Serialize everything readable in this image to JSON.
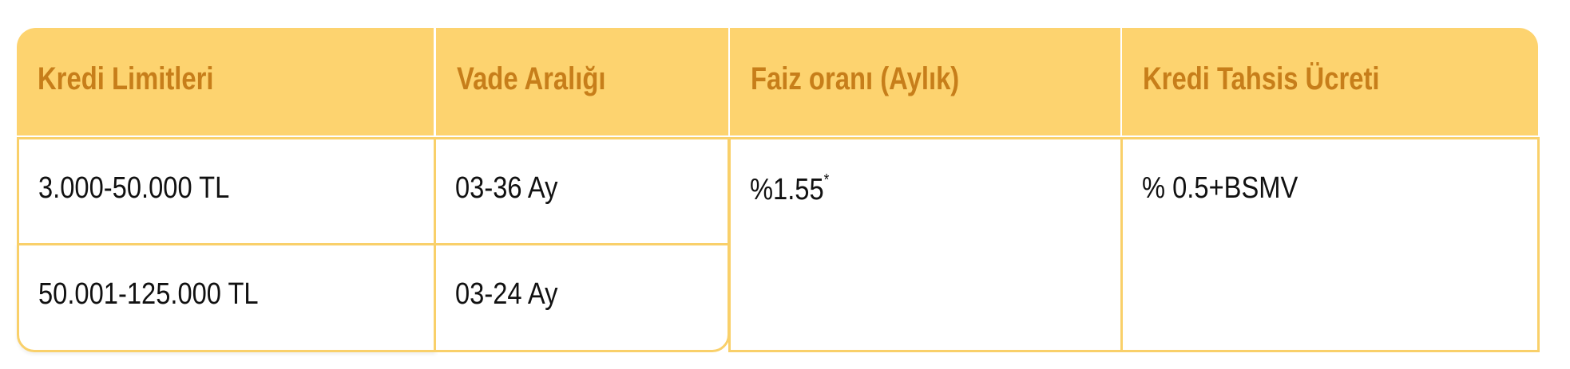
{
  "table": {
    "headers": [
      "Kredi Limitleri",
      "Vade Aralığı",
      "Faiz oranı (Aylık)",
      "Kredi Tahsis Ücreti"
    ],
    "rows": [
      {
        "limit": "3.000-50.000 TL",
        "term": "03-36 Ay"
      },
      {
        "limit": "50.001-125.000 TL",
        "term": "03-24 Ay"
      }
    ],
    "rate": "%1.55",
    "rate_note_mark": "*",
    "fee": "% 0.5+BSMV"
  },
  "colors": {
    "header_bg": "#FDD36F",
    "header_text": "#C77E1A",
    "border": "#F9D06A"
  }
}
